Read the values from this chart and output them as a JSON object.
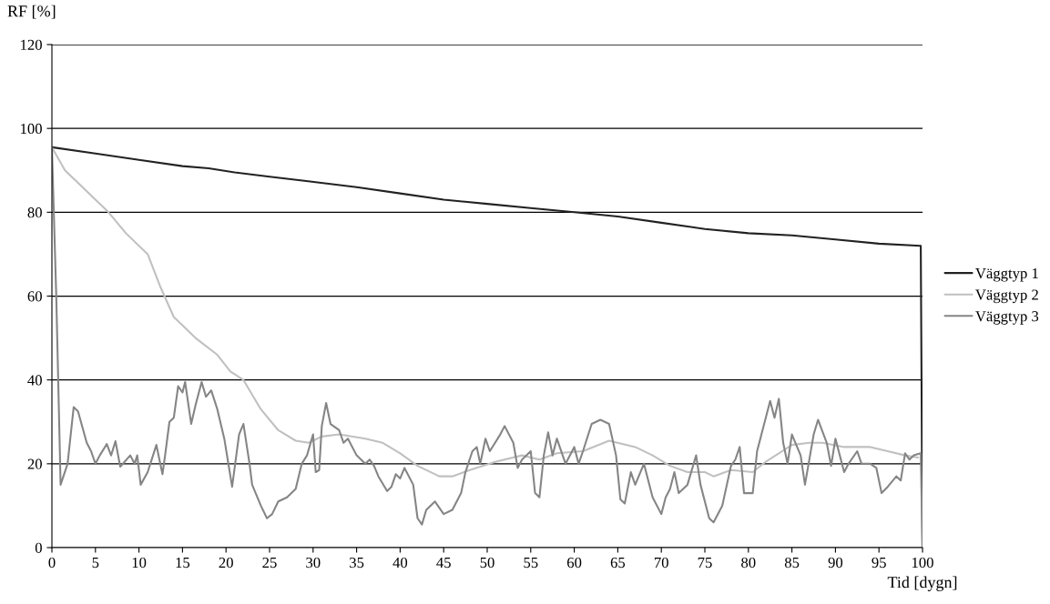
{
  "chart_data": {
    "type": "line",
    "ylabel": "RF [%]",
    "xlabel": "Tid [dygn]",
    "xlim": [
      0,
      100
    ],
    "ylim": [
      0,
      120
    ],
    "xticks": [
      0,
      5,
      10,
      15,
      20,
      25,
      30,
      35,
      40,
      45,
      50,
      55,
      60,
      65,
      70,
      75,
      80,
      85,
      90,
      95,
      100
    ],
    "yticks": [
      0,
      20,
      40,
      60,
      80,
      100,
      120
    ],
    "grid": "y",
    "legend": "right",
    "marker": "none",
    "line_style": "solid",
    "series": [
      {
        "name": "Väggtyp 1",
        "color": "#222222",
        "x": [
          0,
          5,
          10,
          15,
          18,
          21,
          25,
          29,
          35,
          40,
          45,
          50,
          55,
          60,
          65,
          70,
          75,
          80,
          85,
          90,
          95,
          99.8,
          100
        ],
        "values": [
          95.5,
          94,
          92.5,
          91,
          90.5,
          89.5,
          88.5,
          87.5,
          86,
          84.5,
          83,
          82,
          81,
          80,
          79,
          77.5,
          76,
          75,
          74.5,
          73.5,
          72.5,
          72,
          0
        ]
      },
      {
        "name": "Väggtyp 2",
        "color": "#c0c0c0",
        "x": [
          0,
          1.5,
          4,
          6.5,
          8.5,
          11,
          12.5,
          14,
          16.5,
          19,
          20.5,
          22,
          24,
          26,
          28,
          29.5,
          31,
          33,
          36,
          38,
          40,
          42,
          44.5,
          46,
          48,
          51,
          54,
          56,
          58,
          61,
          64,
          67,
          69,
          71,
          73,
          75,
          76,
          78,
          80.5,
          82,
          85,
          87,
          88.5,
          91,
          94,
          96,
          98,
          99.5
        ],
        "values": [
          95.5,
          90,
          85,
          80,
          75,
          70,
          62,
          55,
          50,
          46,
          42,
          40,
          33,
          28,
          25.5,
          25,
          26.5,
          27,
          26,
          25,
          22.5,
          19.5,
          17,
          17,
          18.5,
          20.5,
          22,
          21,
          22.5,
          23,
          25.5,
          24,
          22,
          19.5,
          18,
          18,
          17,
          18.5,
          18,
          20.5,
          24.5,
          25,
          25,
          24,
          24,
          23,
          22,
          21.5
        ]
      },
      {
        "name": "Väggtyp 3",
        "color": "#858585",
        "x": [
          0,
          0.5,
          1,
          1.8,
          2.5,
          3,
          4,
          4.5,
          5,
          5.5,
          6.3,
          6.8,
          7.3,
          7.85,
          9,
          9.5,
          9.8,
          10.2,
          11,
          12,
          12.7,
          13,
          13.5,
          14,
          14.5,
          15,
          15.3,
          16,
          16.5,
          17.2,
          17.7,
          18.3,
          19,
          19.8,
          20.7,
          21.5,
          22,
          22.7,
          23,
          24,
          24.7,
          25.3,
          26,
          27,
          28,
          28.7,
          29.3,
          30,
          30.3,
          30.7,
          31,
          31.5,
          32,
          33,
          33.5,
          34,
          35,
          36,
          36.5,
          37,
          37.5,
          38.5,
          39,
          39.5,
          40,
          40.5,
          41.5,
          42,
          42.5,
          43,
          44,
          45,
          46,
          47,
          47.5,
          48.3,
          48.8,
          49.2,
          49.8,
          50.3,
          51.5,
          52,
          53,
          53.5,
          54,
          55,
          55.5,
          56,
          56.5,
          57,
          57.5,
          58,
          59,
          60,
          60.5,
          61,
          62,
          63,
          64,
          64.8,
          65.3,
          65.8,
          66.5,
          67,
          68,
          69,
          70,
          70.5,
          71,
          71.5,
          72,
          73,
          74,
          74.5,
          75.5,
          76,
          77,
          78,
          78.5,
          79,
          79.5,
          80.5,
          81,
          81.5,
          82.5,
          83,
          83.5,
          84,
          84.5,
          85,
          86,
          86.5,
          87.5,
          88,
          89,
          89.5,
          90,
          91,
          91.5,
          92.5,
          93,
          94,
          94.7,
          95.3,
          96,
          97,
          97.5,
          98,
          98.5,
          99,
          99.8,
          100
        ],
        "values": [
          95.5,
          60,
          15,
          20,
          33.5,
          32.5,
          25,
          23,
          20,
          22,
          24.7,
          22,
          25.4,
          19.3,
          22,
          20,
          22,
          15,
          18,
          24.5,
          17.5,
          22,
          30,
          31,
          38.5,
          37,
          39.5,
          29.5,
          34,
          39.5,
          36,
          37.5,
          33,
          26,
          14.5,
          27,
          29.5,
          20,
          15,
          10,
          7,
          8,
          11,
          12,
          14,
          20,
          22,
          27,
          18,
          18.5,
          29,
          34.5,
          29.5,
          28,
          25,
          26,
          22,
          20,
          21,
          19.5,
          17,
          13.5,
          14.5,
          17.5,
          16.5,
          19,
          15,
          7,
          5.5,
          9,
          11,
          8,
          9,
          13,
          18,
          23,
          24,
          20,
          26,
          23,
          27,
          29,
          25,
          19,
          21,
          23,
          13,
          12,
          22,
          27.5,
          22,
          26,
          20,
          24,
          20,
          23,
          29.5,
          30.5,
          29.5,
          22,
          11.5,
          10.5,
          18,
          15,
          20,
          12,
          8,
          12,
          14,
          18,
          13,
          15,
          22,
          15,
          7,
          6,
          10,
          19.5,
          21,
          24,
          13,
          13,
          23,
          27,
          35,
          31,
          35.5,
          25,
          20,
          27,
          22,
          15,
          27,
          30.5,
          25,
          19.5,
          26,
          18,
          20,
          23,
          20,
          20,
          19,
          13,
          14.5,
          17,
          16,
          22.5,
          21,
          22,
          22.5,
          0
        ]
      }
    ]
  }
}
